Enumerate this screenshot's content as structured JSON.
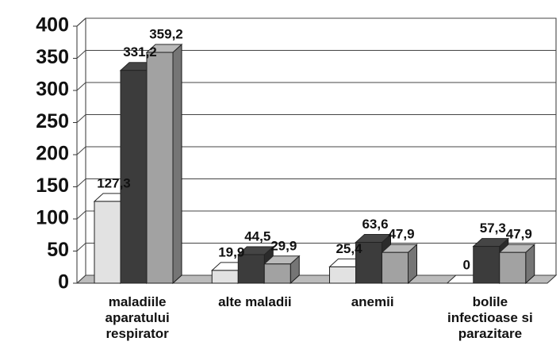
{
  "chart_data": {
    "type": "bar3d",
    "categories": [
      "maladiile\naparatului\nrespirator",
      "alte maladii",
      "anemii",
      "bolile\ninfectioase si\nparazitare"
    ],
    "series": [
      {
        "color": "#e2e2e2",
        "values": [
          127.3,
          19.9,
          25.4,
          0
        ],
        "value_labels": [
          "127,3",
          "19,9",
          "25,4",
          "0"
        ]
      },
      {
        "color": "#3c3c3c",
        "values": [
          331.2,
          44.5,
          63.6,
          57.3
        ],
        "value_labels": [
          "331,2",
          "44,5",
          "63,6",
          "57,3"
        ]
      },
      {
        "color": "#a2a2a2",
        "values": [
          359.2,
          29.9,
          47.9,
          47.9
        ],
        "value_labels": [
          "359,2",
          "29,9",
          "47,9",
          "47,9"
        ]
      }
    ],
    "ylim": [
      0,
      400
    ],
    "yticks": [
      0,
      50,
      100,
      150,
      200,
      250,
      300,
      350,
      400
    ],
    "grid": true
  }
}
